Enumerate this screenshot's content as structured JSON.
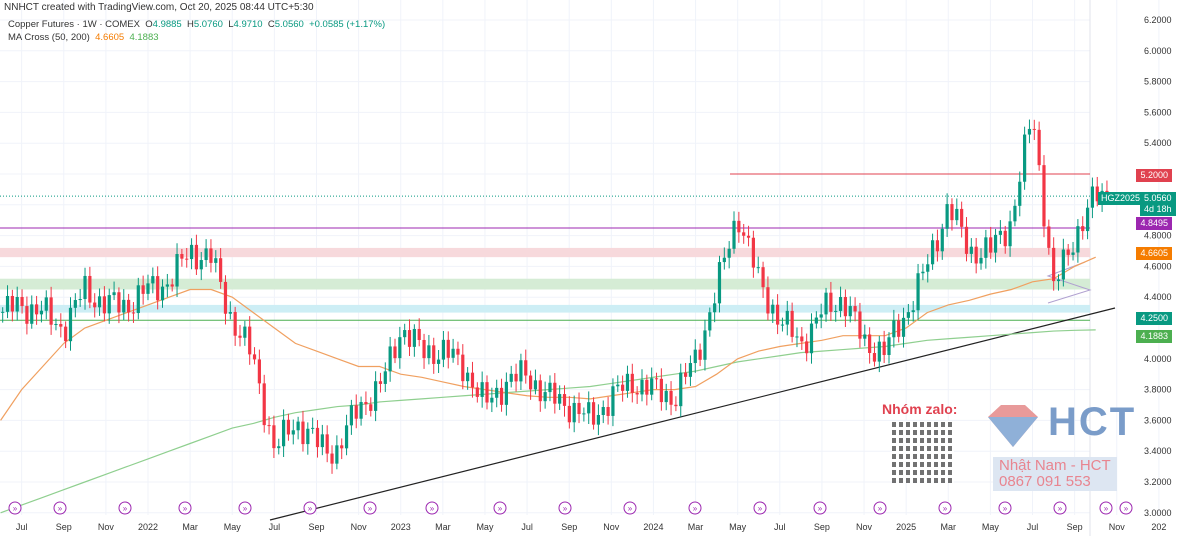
{
  "header": {
    "credit": "NNHCT created with TradingView.com, Oct 20, 2025 08:44 UTC+5:30",
    "symbol": "Copper Futures · 1W · COMEX",
    "o_label": "O",
    "o": "4.9885",
    "h_label": "H",
    "h": "5.0760",
    "l_label": "L",
    "l": "4.9710",
    "c_label": "C",
    "c": "5.0560",
    "change": "+0.0585 (+1.17%)",
    "ma_label": "MA Cross (50, 200)",
    "ma50": "4.6605",
    "ma200": "4.1883"
  },
  "badges": {
    "resistance": "5.2000",
    "ticker": "HGZ2025",
    "price": "5.0560",
    "countdown": "4d 18h",
    "purple": "4.8495",
    "ma50": "4.6605",
    "support": "4.2500",
    "ma200": "4.1883"
  },
  "watermark": {
    "zalo": "Nhóm zalo:",
    "brand": "HCT",
    "name": "Nhật Nam - HCT",
    "phone": "0867 091 553"
  },
  "colors": {
    "up": "#089981",
    "down": "#f23645",
    "ma50": "#f0a060",
    "ma200": "#8fcf8f",
    "purple": "#9c27b0",
    "red": "#e0414f"
  },
  "chart_data": {
    "type": "candlestick",
    "title": "Copper Futures · 1W · COMEX",
    "ylim": [
      3.0,
      6.2
    ],
    "y_ticks": [
      "6.2000",
      "6.0000",
      "5.8000",
      "5.6000",
      "5.4000",
      "4.8000",
      "4.6000",
      "4.4000",
      "4.0000",
      "3.8000",
      "3.6000",
      "3.4000",
      "3.2000",
      "3.0000"
    ],
    "x_ticks": [
      "Jul",
      "Sep",
      "Nov",
      "2022",
      "Mar",
      "May",
      "Jul",
      "Sep",
      "Nov",
      "2023",
      "Mar",
      "May",
      "Jul",
      "Sep",
      "Nov",
      "2024",
      "Mar",
      "May",
      "Jul",
      "Sep",
      "Nov",
      "2025",
      "Mar",
      "May",
      "Jul",
      "Sep",
      "Nov",
      "202"
    ],
    "monthly_close_approx_from_2021_06": [
      4.3,
      4.35,
      4.3,
      4.2,
      4.45,
      4.35,
      4.35,
      4.45,
      4.5,
      4.7,
      4.65,
      4.25,
      4.0,
      3.4,
      3.6,
      3.45,
      3.4,
      3.7,
      3.8,
      4.2,
      4.05,
      4.05,
      3.95,
      3.7,
      3.85,
      3.9,
      3.75,
      3.7,
      3.6,
      3.75,
      3.85,
      3.8,
      3.75,
      4.0,
      4.45,
      4.95,
      4.5,
      4.25,
      4.1,
      4.3,
      4.4,
      4.1,
      4.05,
      4.3,
      4.6,
      5.0,
      4.7,
      4.7,
      4.9,
      5.6,
      4.45,
      4.8,
      5.056
    ],
    "ma50_approx": [
      3.6,
      3.8,
      3.95,
      4.1,
      4.2,
      4.25,
      4.3,
      4.35,
      4.4,
      4.45,
      4.45,
      4.4,
      4.3,
      4.2,
      4.1,
      4.05,
      4.0,
      3.95,
      3.95,
      3.9,
      3.88,
      3.85,
      3.82,
      3.8,
      3.78,
      3.76,
      3.75,
      3.75,
      3.74,
      3.76,
      3.78,
      3.8,
      3.8,
      3.82,
      3.9,
      4.0,
      4.05,
      4.08,
      4.1,
      4.12,
      4.15,
      4.15,
      4.15,
      4.2,
      4.3,
      4.35,
      4.38,
      4.42,
      4.45,
      4.5,
      4.52,
      4.6,
      4.66
    ],
    "ma200_approx": [
      3.0,
      3.05,
      3.1,
      3.15,
      3.2,
      3.25,
      3.3,
      3.35,
      3.4,
      3.45,
      3.5,
      3.55,
      3.58,
      3.62,
      3.65,
      3.67,
      3.69,
      3.7,
      3.72,
      3.73,
      3.74,
      3.75,
      3.76,
      3.77,
      3.78,
      3.79,
      3.8,
      3.81,
      3.82,
      3.84,
      3.86,
      3.88,
      3.9,
      3.92,
      3.95,
      3.98,
      4.0,
      4.02,
      4.04,
      4.05,
      4.06,
      4.07,
      4.08,
      4.1,
      4.12,
      4.13,
      4.14,
      4.15,
      4.16,
      4.17,
      4.18,
      4.185,
      4.188
    ],
    "levels": {
      "resistance": 5.2,
      "purple": 4.8495,
      "last": 5.056,
      "support": 4.25,
      "zone_pink": [
        4.66,
        4.72
      ],
      "zone_green": [
        4.45,
        4.52
      ],
      "zone_cyan": [
        4.3,
        4.35
      ]
    }
  }
}
